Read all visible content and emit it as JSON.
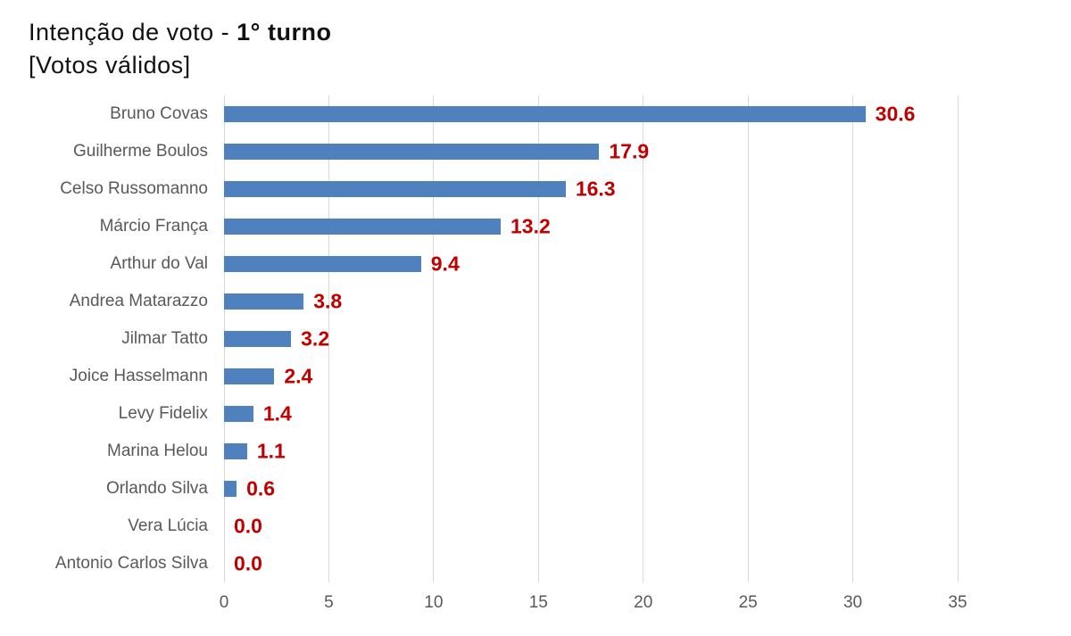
{
  "title": {
    "prefix": "Intenção de voto - ",
    "highlight": "1° turno",
    "subtitle": "[Votos válidos]"
  },
  "chart_data": {
    "type": "bar",
    "orientation": "horizontal",
    "title": "Intenção de voto - 1° turno [Votos válidos]",
    "categories": [
      "Bruno Covas",
      "Guilherme Boulos",
      "Celso Russomanno",
      "Márcio França",
      "Arthur do Val",
      "Andrea Matarazzo",
      "Jilmar Tatto",
      "Joice Hasselmann",
      "Levy Fidelix",
      "Marina Helou",
      "Orlando Silva",
      "Vera Lúcia",
      "Antonio Carlos Silva"
    ],
    "values": [
      30.6,
      17.9,
      16.3,
      13.2,
      9.4,
      3.8,
      3.2,
      2.4,
      1.4,
      1.1,
      0.6,
      0.0,
      0.0
    ],
    "value_label_decimals": 1,
    "xlabel": "",
    "ylabel": "",
    "xlim": [
      0,
      35
    ],
    "x_ticks": [
      0,
      5,
      10,
      15,
      20,
      25,
      30,
      35
    ],
    "grid": true,
    "legend": false,
    "colors": {
      "bar": "#4E81BD",
      "value_label": "#C00000",
      "category_label": "#595959",
      "axis_label": "#595959",
      "gridline": "#D9D9D9",
      "background": "#FFFFFF",
      "title": "#111111"
    }
  }
}
